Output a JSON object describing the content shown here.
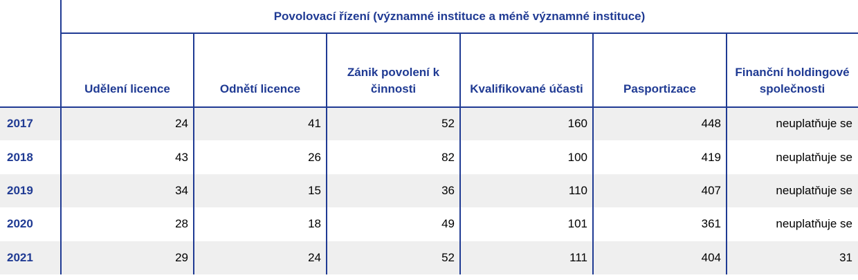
{
  "header": {
    "title": "Povolovací řízení (významné instituce a méně významné instituce)",
    "columns": [
      "Udělení licence",
      "Odnětí licence",
      "Zánik povolení k činnosti",
      "Kvalifikované účasti",
      "Pasportizace",
      "Finanční holdingové společnosti"
    ]
  },
  "table": {
    "rows": [
      {
        "year": "2017",
        "values": [
          24,
          41,
          52,
          160,
          448,
          "neuplatňuje se"
        ]
      },
      {
        "year": "2018",
        "values": [
          43,
          26,
          82,
          100,
          419,
          "neuplatňuje se"
        ]
      },
      {
        "year": "2019",
        "values": [
          34,
          15,
          36,
          110,
          407,
          "neuplatňuje se"
        ]
      },
      {
        "year": "2020",
        "values": [
          28,
          18,
          49,
          101,
          361,
          "neuplatňuje se"
        ]
      },
      {
        "year": "2021",
        "values": [
          29,
          24,
          52,
          111,
          404,
          31
        ]
      }
    ]
  }
}
